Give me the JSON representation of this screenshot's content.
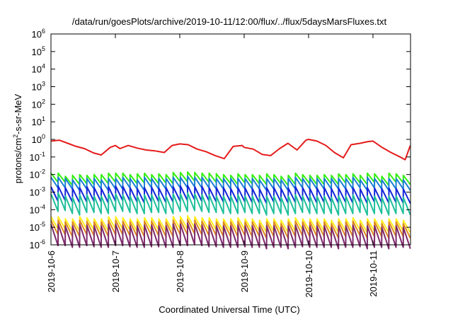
{
  "chart_data": {
    "type": "line",
    "title": "/data/run/goesPlots/archive/2019-10-11/12:00/flux/../flux/5daysMarsFluxes.txt",
    "xlabel": "Coordinated Universal Time (UTC)",
    "ylabel": {
      "base": "protons/cm",
      "sup": "2",
      "rest": "-s-sr-MeV"
    },
    "y_scale": "log",
    "ylim_exp": [
      -6,
      6
    ],
    "y_ticks": [
      {
        "exp": -6,
        "base": "10",
        "sup": "-6"
      },
      {
        "exp": -5,
        "base": "10",
        "sup": "-5"
      },
      {
        "exp": -4,
        "base": "10",
        "sup": "-4"
      },
      {
        "exp": -3,
        "base": "10",
        "sup": "-3"
      },
      {
        "exp": -2,
        "base": "10",
        "sup": "-2"
      },
      {
        "exp": -1,
        "base": "10",
        "sup": "-1"
      },
      {
        "exp": 0,
        "base": "10",
        "sup": "0"
      },
      {
        "exp": 1,
        "base": "10",
        "sup": "1"
      },
      {
        "exp": 2,
        "base": "10",
        "sup": "2"
      },
      {
        "exp": 3,
        "base": "10",
        "sup": "3"
      },
      {
        "exp": 4,
        "base": "10",
        "sup": "4"
      },
      {
        "exp": 5,
        "base": "10",
        "sup": "5"
      },
      {
        "exp": 6,
        "base": "10",
        "sup": "6"
      }
    ],
    "xlim": [
      "2019-10-06",
      "2019-10-11 14:00"
    ],
    "x_ticks": [
      "2019-10-6",
      "2019-10-7",
      "2019-10-8",
      "2019-10-9",
      "2019-10-10",
      "2019-10-11"
    ],
    "grid": false,
    "legend": "none",
    "series": [
      {
        "color": "#e51b1b",
        "x_days": [
          0.0,
          0.13,
          0.26,
          0.39,
          0.52,
          0.66,
          0.78,
          0.92,
          1.0,
          1.07,
          1.2,
          1.34,
          1.48,
          1.62,
          1.76,
          1.88,
          2.0,
          2.13,
          2.27,
          2.41,
          2.55,
          2.69,
          2.83,
          2.97,
          3.0,
          3.14,
          3.28,
          3.41,
          3.55,
          3.68,
          3.82,
          3.96,
          4.0,
          4.13,
          4.27,
          4.4,
          4.54,
          4.66,
          4.8,
          4.92,
          5.0,
          5.14,
          5.28,
          5.42,
          5.5,
          5.58
        ],
        "values": [
          0.8,
          0.9,
          0.6,
          0.4,
          0.3,
          0.17,
          0.13,
          0.35,
          0.45,
          0.3,
          0.45,
          0.32,
          0.25,
          0.22,
          0.18,
          0.45,
          0.55,
          0.5,
          0.28,
          0.2,
          0.12,
          0.08,
          0.4,
          0.45,
          0.35,
          0.28,
          0.14,
          0.12,
          0.3,
          0.6,
          0.25,
          0.9,
          1.0,
          0.8,
          0.45,
          0.18,
          0.09,
          0.5,
          0.6,
          0.75,
          0.8,
          0.35,
          0.18,
          0.1,
          0.07,
          0.45
        ]
      },
      {
        "color": "#33ee11",
        "amp": [
          0.012,
          0.012,
          0.008,
          0.009,
          0.01,
          0.009,
          0.01,
          0.01,
          0.012,
          0.012,
          0.012,
          0.01,
          0.011,
          0.012,
          0.01,
          0.011,
          0.01,
          0.013,
          0.013,
          0.014,
          0.013,
          0.012,
          0.012,
          0.011,
          0.01,
          0.009,
          0.011,
          0.01,
          0.01,
          0.009,
          0.011,
          0.01,
          0.008,
          0.009,
          0.012,
          0.01,
          0.009,
          0.009,
          0.01,
          0.009,
          0.011,
          0.01,
          0.011,
          0.009,
          0.012,
          0.011,
          0.008,
          0.012,
          0.011,
          0.009
        ],
        "drop": 0.3
      },
      {
        "color": "#1a7fd6",
        "amp": [
          0.007,
          0.007,
          0.006,
          0.005,
          0.006,
          0.006,
          0.006,
          0.005,
          0.006,
          0.006,
          0.007,
          0.006,
          0.005,
          0.007,
          0.006,
          0.006,
          0.006,
          0.007,
          0.007,
          0.008,
          0.007,
          0.007,
          0.006,
          0.006,
          0.006,
          0.006,
          0.006,
          0.006,
          0.006,
          0.005,
          0.006,
          0.006,
          0.005,
          0.006,
          0.007,
          0.006,
          0.006,
          0.006,
          0.006,
          0.006,
          0.006,
          0.006,
          0.007,
          0.005,
          0.007,
          0.006,
          0.005,
          0.006,
          0.006,
          0.005
        ],
        "drop": 0.25
      },
      {
        "color": "#1426d9",
        "amp": [
          0.002,
          0.0022,
          0.0018,
          0.0016,
          0.0018,
          0.002,
          0.0018,
          0.0016,
          0.002,
          0.0022,
          0.0021,
          0.0018,
          0.0016,
          0.0018,
          0.0019,
          0.0017,
          0.0018,
          0.002,
          0.0022,
          0.0024,
          0.002,
          0.0021,
          0.0018,
          0.0018,
          0.0018,
          0.0016,
          0.0018,
          0.0017,
          0.0016,
          0.0015,
          0.0018,
          0.0018,
          0.0016,
          0.0017,
          0.002,
          0.0018,
          0.0016,
          0.0017,
          0.0018,
          0.0016,
          0.0017,
          0.0016,
          0.0018,
          0.0015,
          0.0018,
          0.0017,
          0.0016,
          0.0017,
          0.0016,
          0.0015
        ],
        "drop": 0.15
      },
      {
        "color": "#1fbf9a",
        "amp": [
          0.0008,
          0.0009,
          0.0006,
          0.0005,
          0.0007,
          0.0007,
          0.0006,
          0.0006,
          0.0008,
          0.0008,
          0.0007,
          0.0006,
          0.0006,
          0.0007,
          0.0007,
          0.0006,
          0.0006,
          0.0008,
          0.0008,
          0.0009,
          0.0008,
          0.0007,
          0.0007,
          0.0006,
          0.0006,
          0.0006,
          0.0007,
          0.0006,
          0.0006,
          0.0005,
          0.0006,
          0.0006,
          0.0005,
          0.0006,
          0.0007,
          0.0006,
          0.0006,
          0.0006,
          0.0006,
          0.0005,
          0.0006,
          0.0006,
          0.0007,
          0.0005,
          0.0006,
          0.0006,
          0.0005,
          0.0006,
          0.0006,
          0.0005
        ],
        "drop": 0.1
      },
      {
        "color": "#ffee1f",
        "amp": [
          4e-05,
          4e-05,
          3e-05,
          3e-05,
          4e-05,
          3.5e-05,
          3e-05,
          3e-05,
          4e-05,
          4e-05,
          3.5e-05,
          3e-05,
          3e-05,
          3.5e-05,
          3.5e-05,
          3e-05,
          3e-05,
          4e-05,
          4e-05,
          4.5e-05,
          4e-05,
          3.5e-05,
          3.5e-05,
          3e-05,
          3e-05,
          3e-05,
          3.5e-05,
          3e-05,
          3e-05,
          2.5e-05,
          3e-05,
          3e-05,
          2.5e-05,
          3e-05,
          3.5e-05,
          3e-05,
          3e-05,
          3e-05,
          3e-05,
          2.5e-05,
          3e-05,
          3e-05,
          3.5e-05,
          2.5e-05,
          3e-05,
          3e-05,
          2.5e-05,
          3e-05,
          3e-05,
          2.5e-05
        ],
        "drop": 0.2
      },
      {
        "color": "#e08a1c",
        "amp": [
          2.5e-05,
          2.5e-05,
          2e-05,
          2e-05,
          2.5e-05,
          2.2e-05,
          2e-05,
          2e-05,
          2.5e-05,
          2.5e-05,
          2.2e-05,
          2e-05,
          2e-05,
          2.2e-05,
          2.2e-05,
          2e-05,
          2e-05,
          2.5e-05,
          2.5e-05,
          2.8e-05,
          2.5e-05,
          2.2e-05,
          2.2e-05,
          2e-05,
          2e-05,
          2e-05,
          2.2e-05,
          2e-05,
          2e-05,
          1.6e-05,
          2e-05,
          2e-05,
          1.6e-05,
          2e-05,
          2.2e-05,
          2e-05,
          2e-05,
          2e-05,
          2e-05,
          1.6e-05,
          2e-05,
          2e-05,
          2.2e-05,
          1.6e-05,
          2e-05,
          2e-05,
          1.6e-05,
          2e-05,
          2e-05,
          1.6e-05
        ],
        "drop": 0.15
      },
      {
        "color": "#7d2a6b",
        "amp": [
          1.5e-05,
          1.5e-05,
          1.2e-05,
          1.2e-05,
          1.5e-05,
          1.3e-05,
          1.2e-05,
          1.2e-05,
          1.5e-05,
          1.5e-05,
          1.3e-05,
          1.2e-05,
          1.2e-05,
          1.3e-05,
          1.3e-05,
          1.2e-05,
          1.2e-05,
          1.5e-05,
          1.5e-05,
          1.7e-05,
          1.5e-05,
          1.3e-05,
          1.3e-05,
          1.2e-05,
          1.2e-05,
          1.2e-05,
          1.3e-05,
          1.2e-05,
          1.2e-05,
          1e-05,
          1.2e-05,
          1.2e-05,
          1e-05,
          1.2e-05,
          1.3e-05,
          1.2e-05,
          1.2e-05,
          1.2e-05,
          1.2e-05,
          1e-05,
          1.2e-05,
          1.2e-05,
          1.3e-05,
          1e-05,
          1.2e-05,
          1.2e-05,
          1e-05,
          1.2e-05,
          1.2e-05,
          1e-05
        ],
        "drop": 0.06
      }
    ]
  }
}
